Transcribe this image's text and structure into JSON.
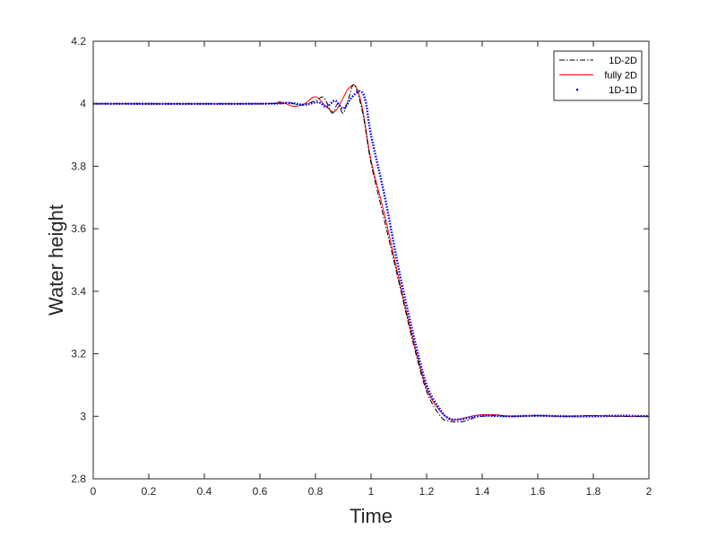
{
  "chart_data": {
    "type": "line",
    "xlabel": "Time",
    "ylabel": "Water height",
    "xlim": [
      0,
      2
    ],
    "ylim": [
      2.8,
      4.2
    ],
    "xticks": [
      0,
      0.2,
      0.4,
      0.6,
      0.8,
      1,
      1.2,
      1.4,
      1.6,
      1.8,
      2
    ],
    "xtick_labels": [
      "0",
      "0.2",
      "0.4",
      "0.6",
      "0.8",
      "1",
      "1.2",
      "1.4",
      "1.6",
      "1.8",
      "2"
    ],
    "yticks": [
      2.8,
      3,
      3.2,
      3.4,
      3.6,
      3.8,
      4,
      4.2
    ],
    "ytick_labels": [
      "2.8",
      "3",
      "3.2",
      "3.4",
      "3.6",
      "3.8",
      "4",
      "4.2"
    ],
    "grid": false,
    "legend_position": "top-right",
    "series": [
      {
        "name": "1D-2D",
        "color": "#000000",
        "style": "dashdot",
        "x": [
          0,
          0.6,
          0.7,
          0.75,
          0.8,
          0.83,
          0.86,
          0.88,
          0.9,
          0.92,
          0.94,
          0.97,
          1.0,
          1.05,
          1.1,
          1.15,
          1.2,
          1.25,
          1.28,
          1.31,
          1.34,
          1.37,
          1.4,
          1.45,
          1.5,
          1.6,
          1.7,
          1.8,
          1.9,
          2.0
        ],
        "y": [
          4.0,
          4.0,
          4.003,
          3.996,
          4.01,
          4.02,
          3.97,
          4.0,
          3.97,
          4.02,
          4.06,
          3.97,
          3.81,
          3.62,
          3.43,
          3.24,
          3.08,
          3.0,
          2.985,
          2.982,
          2.985,
          2.995,
          3.0,
          3.002,
          3.0,
          3.002,
          3.0,
          3.002,
          3.0,
          3.0
        ]
      },
      {
        "name": "fully 2D",
        "color": "#ff0000",
        "style": "solid",
        "x": [
          0,
          0.6,
          0.67,
          0.72,
          0.76,
          0.8,
          0.84,
          0.87,
          0.9,
          0.92,
          0.945,
          0.97,
          1.0,
          1.05,
          1.1,
          1.15,
          1.2,
          1.25,
          1.29,
          1.32,
          1.36,
          1.4,
          1.45,
          1.5,
          1.6,
          1.7,
          1.8,
          1.9,
          2.0
        ],
        "y": [
          4.0,
          4.0,
          4.006,
          3.992,
          4.0,
          4.022,
          3.99,
          3.975,
          4.02,
          4.05,
          4.055,
          3.98,
          3.82,
          3.64,
          3.44,
          3.25,
          3.09,
          3.015,
          2.99,
          2.99,
          3.0,
          3.005,
          3.005,
          3.0,
          3.002,
          3.0,
          3.002,
          3.0,
          3.0
        ]
      },
      {
        "name": "1D-1D",
        "color": "#0000ff",
        "style": "dotted",
        "x": [
          0,
          0.6,
          0.7,
          0.76,
          0.81,
          0.84,
          0.87,
          0.9,
          0.93,
          0.96,
          0.98,
          1.0,
          1.05,
          1.1,
          1.15,
          1.2,
          1.25,
          1.28,
          1.31,
          1.35,
          1.4,
          1.5,
          1.6,
          1.7,
          1.8,
          1.9,
          2.0
        ],
        "y": [
          4.0,
          4.0,
          4.003,
          3.997,
          4.005,
          3.99,
          4.01,
          3.985,
          4.02,
          4.04,
          4.01,
          3.9,
          3.7,
          3.47,
          3.27,
          3.1,
          3.02,
          2.993,
          2.99,
          2.995,
          3.002,
          3.0,
          3.002,
          3.0,
          3.0,
          3.002,
          3.0
        ]
      }
    ]
  }
}
